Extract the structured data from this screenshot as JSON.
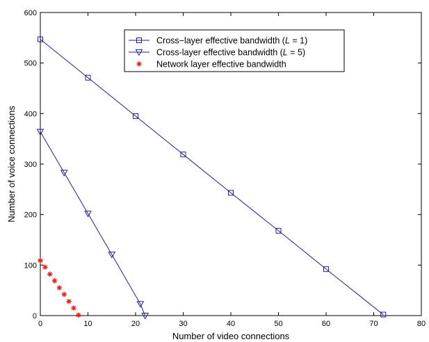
{
  "chart_data": {
    "type": "line",
    "title": "",
    "xlabel": "Number of video connections",
    "ylabel": "Number of voice connections",
    "xlim": [
      0,
      80
    ],
    "ylim": [
      0,
      600
    ],
    "xticks": [
      0,
      10,
      20,
      30,
      40,
      50,
      60,
      70,
      80
    ],
    "yticks": [
      0,
      100,
      200,
      300,
      400,
      500,
      600
    ],
    "grid": false,
    "legend_position": "top-center",
    "series": [
      {
        "name": "Cross−layer effective bandwidth (L = 1)",
        "legend_prefix": "Cross−layer effective bandwidth (",
        "legend_var": "L",
        "legend_suffix": " = 1)",
        "marker": "square",
        "color": "#1f1f8f",
        "line": true,
        "x": [
          0,
          10,
          20,
          30,
          40,
          50,
          60,
          72
        ],
        "y": [
          547,
          471,
          395,
          319,
          243,
          168,
          92,
          2
        ]
      },
      {
        "name": "Cross-layer effective bandwidth (L = 5)",
        "legend_prefix": "Cross-layer effective bandwidth  (",
        "legend_var": "L",
        "legend_suffix": " = 5)",
        "marker": "triangle-down",
        "color": "#1f1f8f",
        "line": true,
        "x": [
          0,
          5,
          10,
          15,
          21,
          22
        ],
        "y": [
          364,
          283,
          202,
          121,
          23,
          0
        ]
      },
      {
        "name": "Network layer effective bandwidth",
        "legend_prefix": "Network layer effective bandwidth",
        "legend_var": "",
        "legend_suffix": "",
        "marker": "asterisk",
        "color": "#e8201a",
        "line": false,
        "x": [
          0,
          1,
          2,
          3,
          4,
          5,
          6,
          7,
          8
        ],
        "y": [
          109,
          96,
          82,
          69,
          55,
          42,
          28,
          15,
          1
        ]
      }
    ]
  }
}
